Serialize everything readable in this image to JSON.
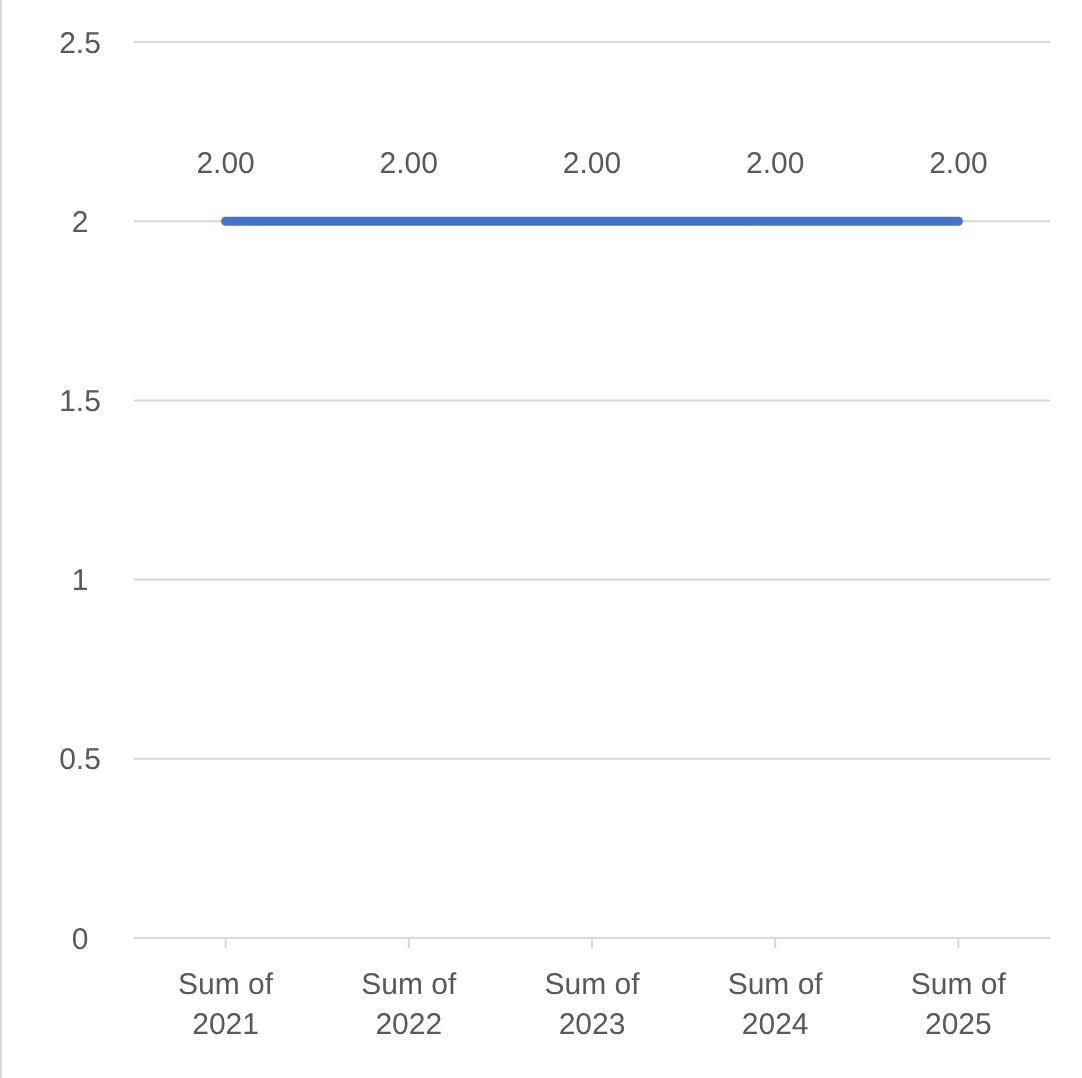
{
  "chart_data": {
    "type": "line",
    "categories": [
      "Sum of 2021",
      "Sum of 2022",
      "Sum of 2023",
      "Sum of 2024",
      "Sum of 2025"
    ],
    "series": [
      {
        "color": "#4472c4",
        "values": [
          2,
          2,
          2,
          2,
          2
        ],
        "value_labels": [
          "2.00",
          "2.00",
          "2.00",
          "2.00",
          "2.00"
        ]
      }
    ],
    "ylim": [
      0,
      2.5
    ],
    "yticks": [
      0,
      0.5,
      1,
      1.5,
      2,
      2.5
    ],
    "grid": "y",
    "marker": "none",
    "line_style": "solid"
  }
}
